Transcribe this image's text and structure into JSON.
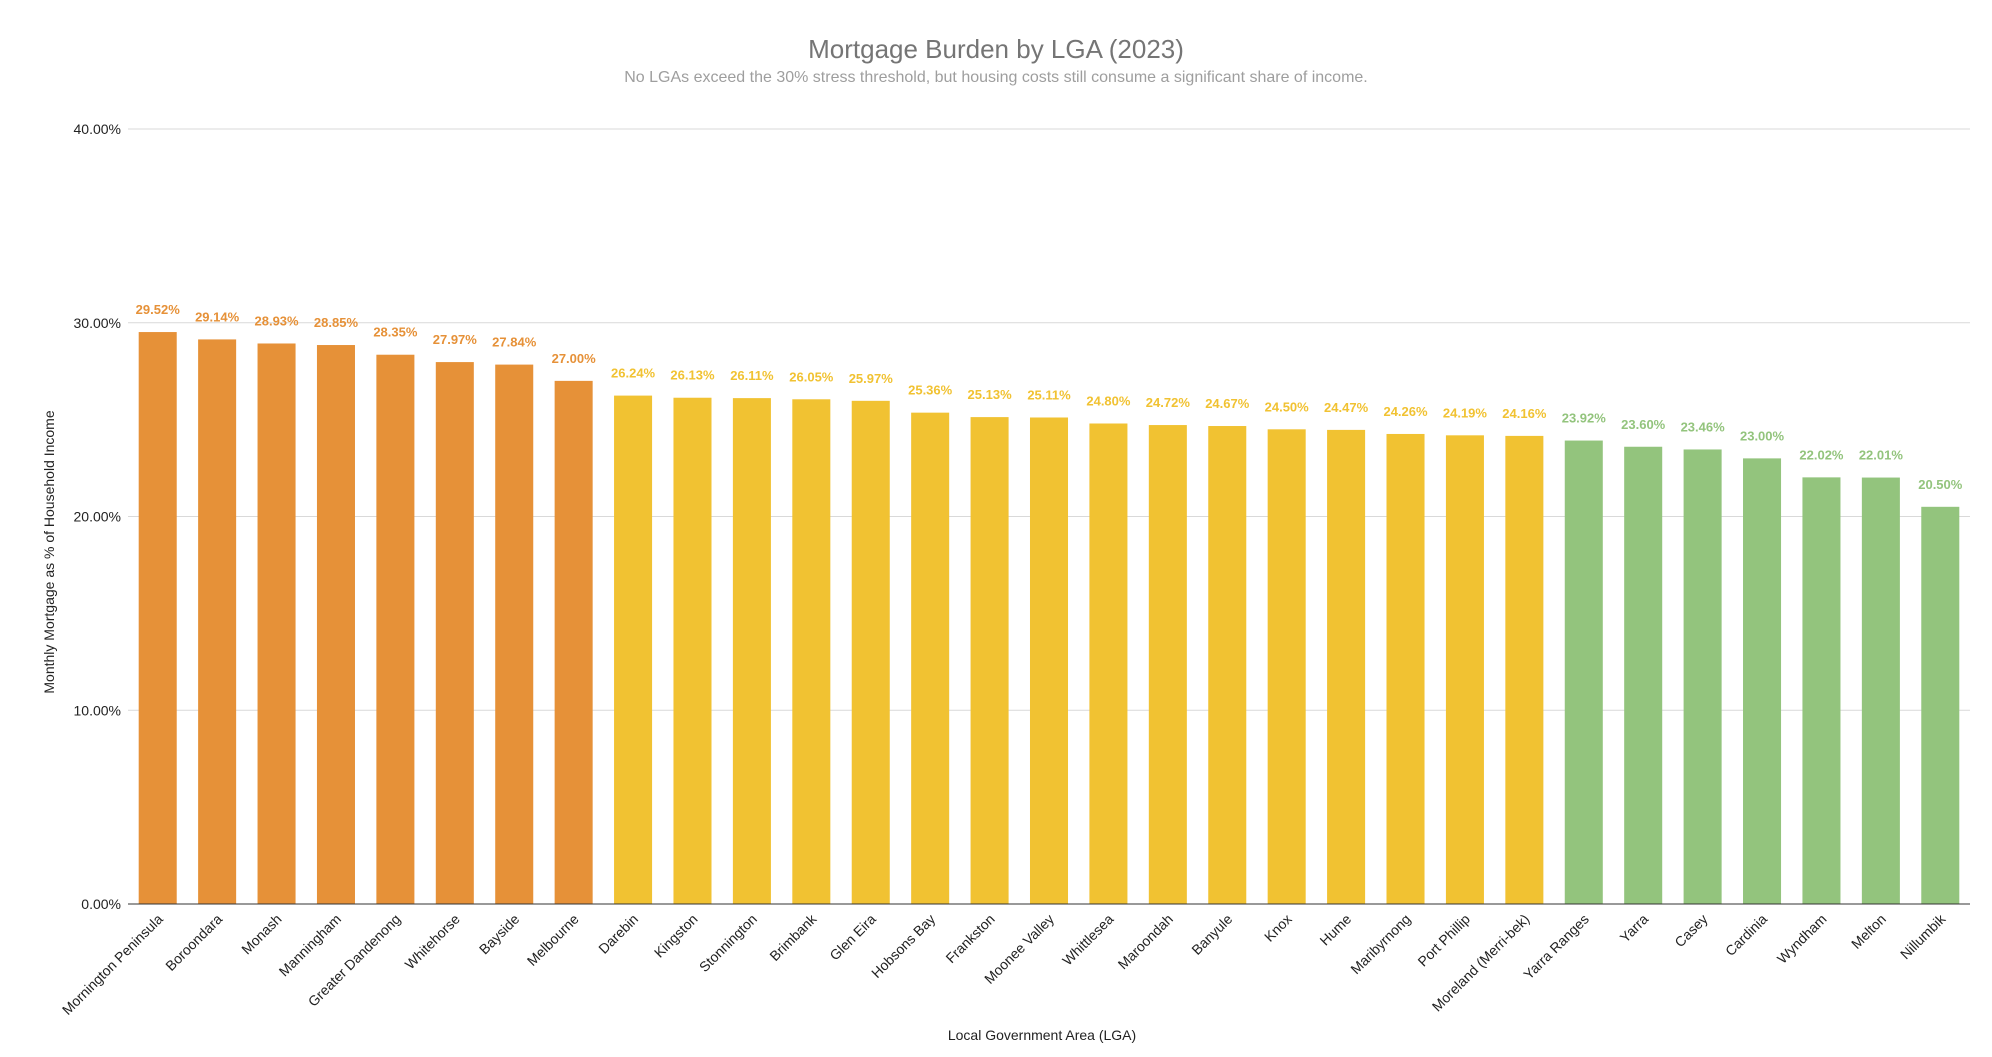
{
  "chart_data": {
    "type": "bar",
    "title": "Mortgage Burden by LGA (2023)",
    "subtitle": "No LGAs exceed the 30% stress threshold, but housing costs still consume a significant share of income.",
    "xlabel": "Local Government Area (LGA)",
    "ylabel": "Monthly Mortgage as % of Household Income",
    "ylim": [
      0,
      40
    ],
    "yticks": [
      "0.00%",
      "10.00%",
      "20.00%",
      "30.00%",
      "40.00%"
    ],
    "grid": true,
    "legend": "none",
    "colors": {
      "high": "#e69138",
      "medium": "#f1c232",
      "low": "#93c47d"
    },
    "categories": [
      "Mornington Peninsula",
      "Boroondara",
      "Monash",
      "Manningham",
      "Greater Dandenong",
      "Whitehorse",
      "Bayside",
      "Melbourne",
      "Darebin",
      "Kingston",
      "Stonnington",
      "Brimbank",
      "Glen Eira",
      "Hobsons Bay",
      "Frankston",
      "Moonee Valley",
      "Whittlesea",
      "Maroondah",
      "Banyule",
      "Knox",
      "Hume",
      "Maribyrnong",
      "Port Phillip",
      "Moreland (Merri-bek)",
      "Yarra Ranges",
      "Yarra",
      "Casey",
      "Cardinia",
      "Wyndham",
      "Melton",
      "Nillumbik"
    ],
    "values": [
      29.52,
      29.14,
      28.93,
      28.85,
      28.35,
      27.97,
      27.84,
      27.0,
      26.24,
      26.13,
      26.11,
      26.05,
      25.97,
      25.36,
      25.13,
      25.11,
      24.8,
      24.72,
      24.67,
      24.5,
      24.47,
      24.26,
      24.19,
      24.16,
      23.92,
      23.6,
      23.46,
      23.0,
      22.02,
      22.01,
      20.5
    ],
    "data_labels": [
      "29.52%",
      "29.14%",
      "28.93%",
      "28.85%",
      "28.35%",
      "27.97%",
      "27.84%",
      "27.00%",
      "26.24%",
      "26.13%",
      "26.11%",
      "26.05%",
      "25.97%",
      "25.36%",
      "25.13%",
      "25.11%",
      "24.80%",
      "24.72%",
      "24.67%",
      "24.50%",
      "24.47%",
      "24.26%",
      "24.19%",
      "24.16%",
      "23.92%",
      "23.60%",
      "23.46%",
      "23.00%",
      "22.02%",
      "22.01%",
      "20.50%"
    ],
    "bar_color_keys": [
      "high",
      "high",
      "high",
      "high",
      "high",
      "high",
      "high",
      "high",
      "medium",
      "medium",
      "medium",
      "medium",
      "medium",
      "medium",
      "medium",
      "medium",
      "medium",
      "medium",
      "medium",
      "medium",
      "medium",
      "medium",
      "medium",
      "medium",
      "low",
      "low",
      "low",
      "low",
      "low",
      "low",
      "low"
    ]
  }
}
